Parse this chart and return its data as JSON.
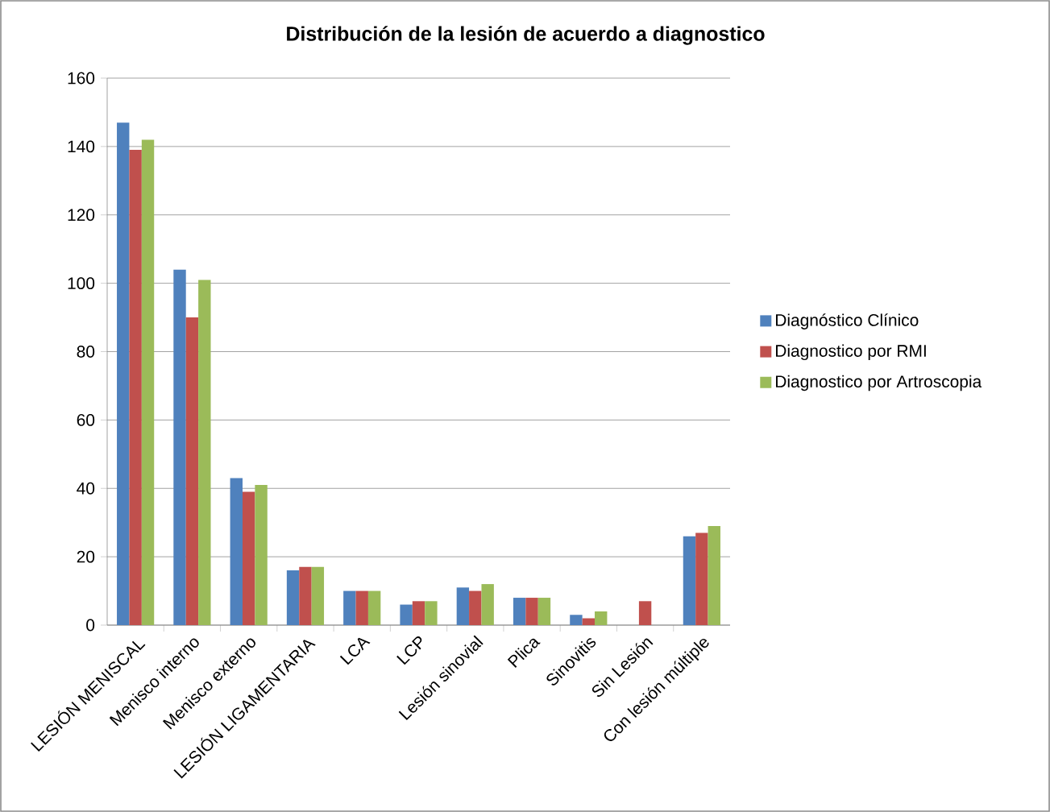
{
  "chart_data": {
    "type": "bar",
    "title": "Distribución de la lesión de acuerdo a diagnostico",
    "categories": [
      "LESIÓN MENISCAL",
      "Menisco interno",
      "Menisco externo",
      "LESIÓN LIGAMENTARIA",
      "LCA",
      "LCP",
      "Lesión sinovial",
      "Plica",
      "Sinovitis",
      "Sin Lesión",
      "Con lesión múltiple"
    ],
    "series": [
      {
        "name": "Diagnóstico Clínico",
        "color": "#4f81bd",
        "values": [
          147,
          104,
          43,
          16,
          10,
          6,
          11,
          8,
          3,
          0,
          26
        ]
      },
      {
        "name": "Diagnostico por RMI",
        "color": "#c0504d",
        "values": [
          139,
          90,
          39,
          17,
          10,
          7,
          10,
          8,
          2,
          7,
          27
        ]
      },
      {
        "name": "Diagnostico por Artroscopia",
        "color": "#9bbb59",
        "values": [
          142,
          101,
          41,
          17,
          10,
          7,
          12,
          8,
          4,
          0,
          29
        ]
      }
    ],
    "ylim": [
      0,
      160
    ],
    "yticks": [
      0,
      20,
      40,
      60,
      80,
      100,
      120,
      140,
      160
    ],
    "grid": "y",
    "legend": "right"
  }
}
